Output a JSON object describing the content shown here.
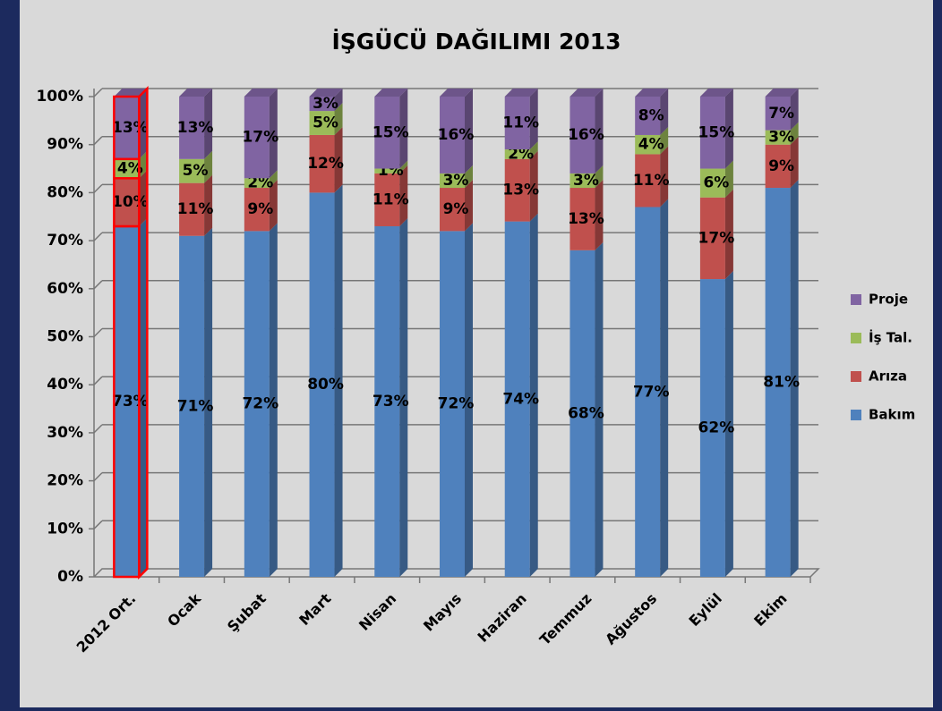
{
  "chart_data": {
    "type": "bar",
    "stacked": true,
    "title": "İŞGÜCÜ DAĞILIMI 2013",
    "categories": [
      "2012 Ort.",
      "Ocak",
      "Şubat",
      "Mart",
      "Nisan",
      "Mayıs",
      "Haziran",
      "Temmuz",
      "Ağustos",
      "Eylül",
      "Ekim"
    ],
    "series": [
      {
        "name": "Bakım",
        "color": "#4f81bd",
        "values": [
          73,
          71,
          72,
          80,
          73,
          72,
          74,
          68,
          77,
          62,
          81
        ],
        "value_labels": [
          "73%",
          "71%",
          "72%",
          "80%",
          "73%",
          "72%",
          "74%",
          "68%",
          "77%",
          "62%",
          "81%"
        ]
      },
      {
        "name": "Arıza",
        "color": "#c0504d",
        "values": [
          10,
          11,
          9,
          12,
          11,
          9,
          13,
          13,
          11,
          17,
          9
        ],
        "value_labels": [
          "10%",
          "11%",
          "9%",
          "12%",
          "11%",
          "9%",
          "13%",
          "13%",
          "11%",
          "17%",
          "9%"
        ]
      },
      {
        "name": "İş Tal.",
        "color": "#9bbb59",
        "values": [
          4,
          5,
          2,
          5,
          1,
          3,
          2,
          3,
          4,
          6,
          3
        ],
        "value_labels": [
          "4%",
          "5%",
          "2%",
          "5%",
          "1%",
          "3%",
          "2%",
          "3%",
          "4%",
          "6%",
          "3%"
        ]
      },
      {
        "name": "Proje",
        "color": "#8064a2",
        "values": [
          13,
          13,
          17,
          3,
          15,
          16,
          11,
          16,
          8,
          15,
          7
        ],
        "value_labels": [
          "13%",
          "13%",
          "17%",
          "3%",
          "15%",
          "16%",
          "11%",
          "16%",
          "8%",
          "15%",
          "7%"
        ]
      }
    ],
    "ylim": [
      0,
      100
    ],
    "yticks": [
      {
        "value": 0,
        "label": "0%"
      },
      {
        "value": 10,
        "label": "10%"
      },
      {
        "value": 20,
        "label": "20%"
      },
      {
        "value": 30,
        "label": "30%"
      },
      {
        "value": 40,
        "label": "40%"
      },
      {
        "value": 50,
        "label": "50%"
      },
      {
        "value": 60,
        "label": "60%"
      },
      {
        "value": 70,
        "label": "70%"
      },
      {
        "value": 80,
        "label": "80%"
      },
      {
        "value": 90,
        "label": "90%"
      },
      {
        "value": 100,
        "label": "100%"
      }
    ],
    "grid": true,
    "legend": "right"
  }
}
